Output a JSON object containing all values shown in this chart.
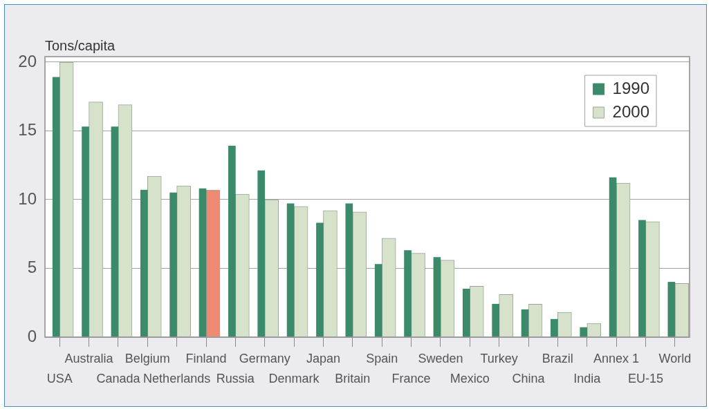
{
  "chart_data": {
    "type": "bar",
    "ylabel": "Tons/capita",
    "categories": [
      "USA",
      "Australia",
      "Canada",
      "Belgium",
      "Netherlands",
      "Finland",
      "Russia",
      "Germany",
      "Denmark",
      "Japan",
      "Britain",
      "Spain",
      "France",
      "Sweden",
      "Mexico",
      "Turkey",
      "China",
      "Brazil",
      "India",
      "Annex 1",
      "EU-15",
      "World"
    ],
    "series": [
      {
        "name": "1990",
        "color": "#3b8a6a",
        "values": [
          18.9,
          15.3,
          15.3,
          10.7,
          10.5,
          10.8,
          13.9,
          12.1,
          9.7,
          8.3,
          9.7,
          5.3,
          6.3,
          5.8,
          3.5,
          2.4,
          2.0,
          1.3,
          0.7,
          11.6,
          8.5,
          4.0
        ]
      },
      {
        "name": "2000",
        "color": "#d6e2c9",
        "colors": [
          "#d6e2c9",
          "#d6e2c9",
          "#d6e2c9",
          "#d6e2c9",
          "#d6e2c9",
          "#ef8a72",
          "#d6e2c9",
          "#d6e2c9",
          "#d6e2c9",
          "#d6e2c9",
          "#d6e2c9",
          "#d6e2c9",
          "#d6e2c9",
          "#d6e2c9",
          "#d6e2c9",
          "#d6e2c9",
          "#d6e2c9",
          "#d6e2c9",
          "#d6e2c9",
          "#d6e2c9",
          "#d6e2c9",
          "#d6e2c9"
        ],
        "values": [
          20.0,
          17.1,
          16.9,
          11.7,
          11.0,
          10.7,
          10.4,
          10.0,
          9.5,
          9.2,
          9.1,
          7.2,
          6.1,
          5.6,
          3.7,
          3.1,
          2.4,
          1.8,
          1.0,
          11.2,
          8.4,
          3.9
        ]
      }
    ],
    "ylim": [
      0,
      20.4
    ],
    "yticks": [
      0,
      5,
      10,
      15,
      20
    ],
    "grid": "y",
    "legend": "top right"
  }
}
